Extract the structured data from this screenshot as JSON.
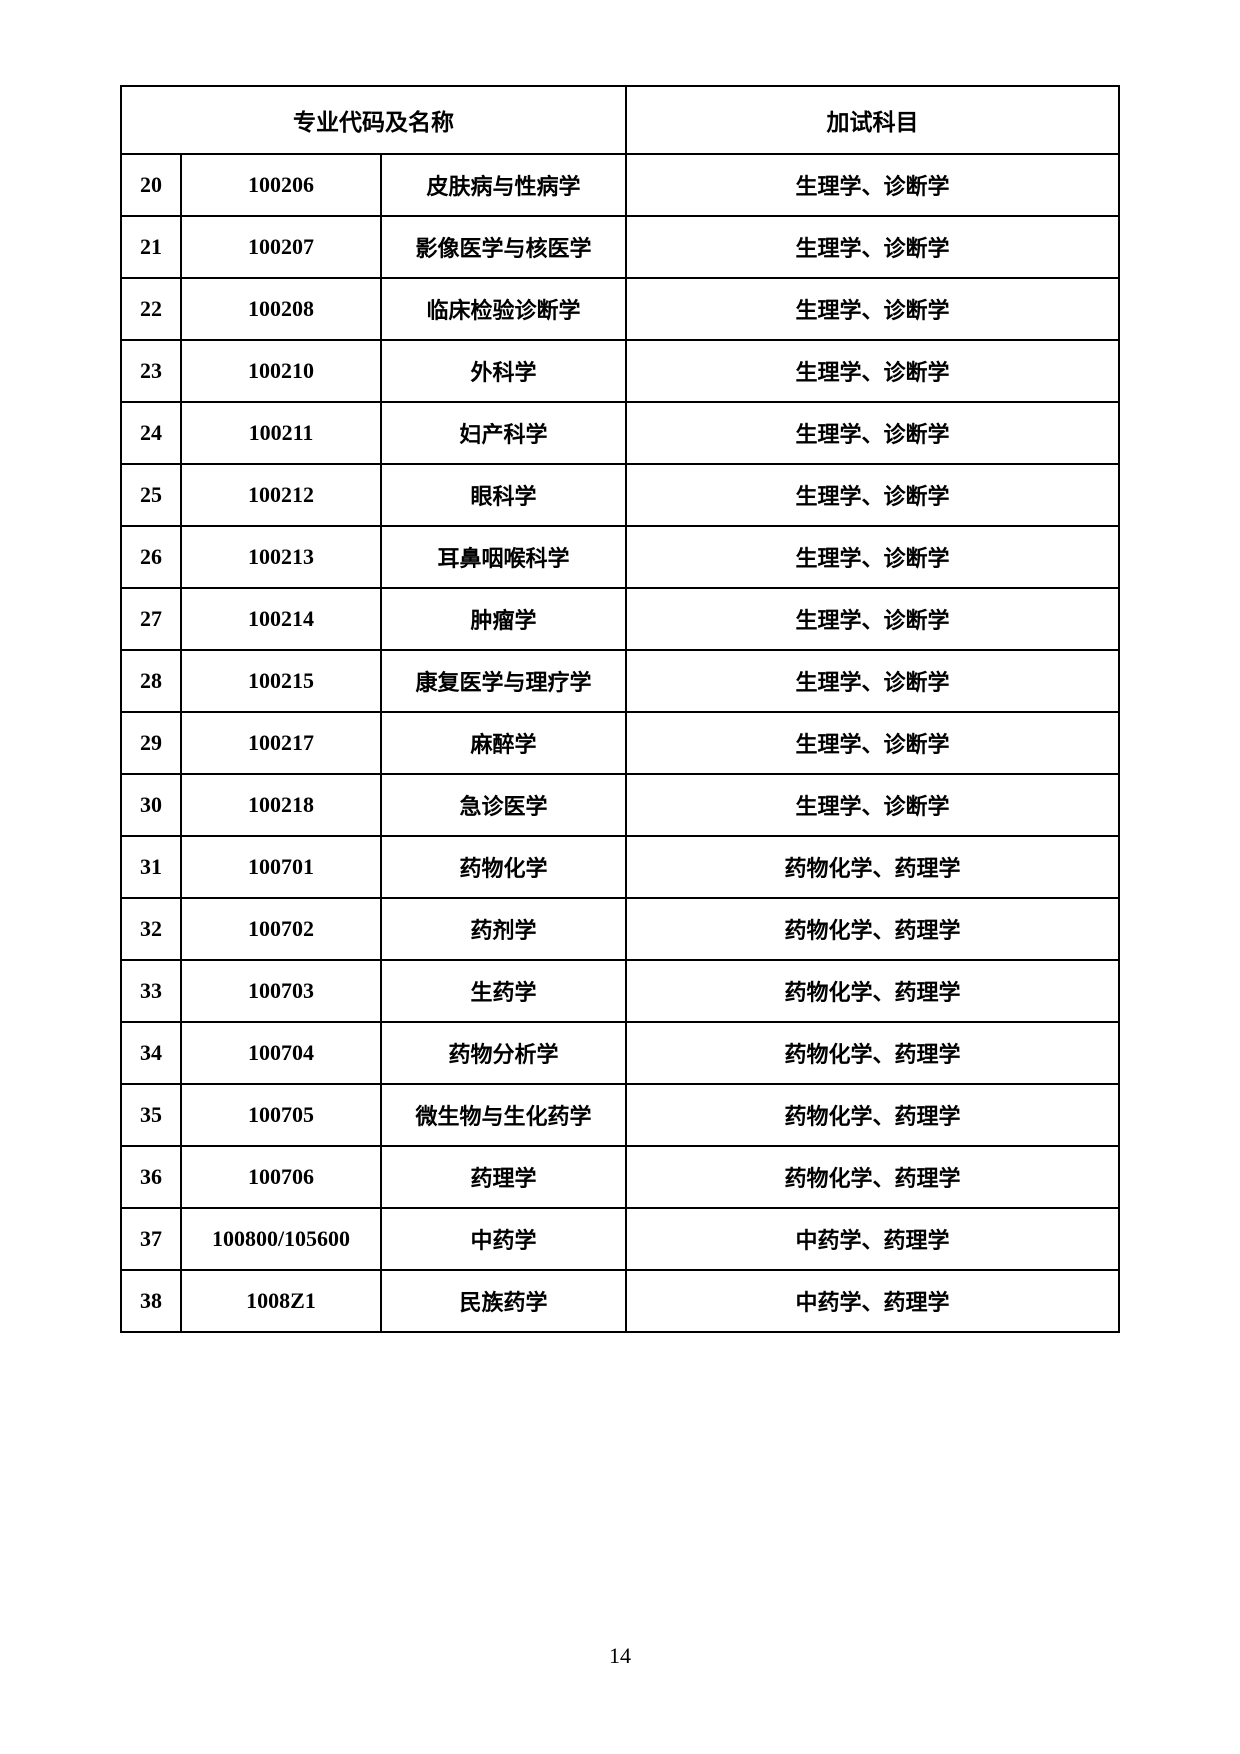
{
  "table": {
    "header": {
      "col_group_1": "专业代码及名称",
      "col_group_2": "加试科目"
    },
    "rows": [
      {
        "idx": "20",
        "code": "100206",
        "name": "皮肤病与性病学",
        "subject": "生理学、诊断学"
      },
      {
        "idx": "21",
        "code": "100207",
        "name": "影像医学与核医学",
        "subject": "生理学、诊断学"
      },
      {
        "idx": "22",
        "code": "100208",
        "name": "临床检验诊断学",
        "subject": "生理学、诊断学"
      },
      {
        "idx": "23",
        "code": "100210",
        "name": "外科学",
        "subject": "生理学、诊断学"
      },
      {
        "idx": "24",
        "code": "100211",
        "name": "妇产科学",
        "subject": "生理学、诊断学"
      },
      {
        "idx": "25",
        "code": "100212",
        "name": "眼科学",
        "subject": "生理学、诊断学"
      },
      {
        "idx": "26",
        "code": "100213",
        "name": "耳鼻咽喉科学",
        "subject": "生理学、诊断学"
      },
      {
        "idx": "27",
        "code": "100214",
        "name": "肿瘤学",
        "subject": "生理学、诊断学"
      },
      {
        "idx": "28",
        "code": "100215",
        "name": "康复医学与理疗学",
        "subject": "生理学、诊断学"
      },
      {
        "idx": "29",
        "code": "100217",
        "name": "麻醉学",
        "subject": "生理学、诊断学"
      },
      {
        "idx": "30",
        "code": "100218",
        "name": "急诊医学",
        "subject": "生理学、诊断学"
      },
      {
        "idx": "31",
        "code": "100701",
        "name": "药物化学",
        "subject": "药物化学、药理学"
      },
      {
        "idx": "32",
        "code": "100702",
        "name": "药剂学",
        "subject": "药物化学、药理学"
      },
      {
        "idx": "33",
        "code": "100703",
        "name": "生药学",
        "subject": "药物化学、药理学"
      },
      {
        "idx": "34",
        "code": "100704",
        "name": "药物分析学",
        "subject": "药物化学、药理学"
      },
      {
        "idx": "35",
        "code": "100705",
        "name": "微生物与生化药学",
        "subject": "药物化学、药理学"
      },
      {
        "idx": "36",
        "code": "100706",
        "name": "药理学",
        "subject": "药物化学、药理学"
      },
      {
        "idx": "37",
        "code": "100800/105600",
        "name": "中药学",
        "subject": "中药学、药理学"
      },
      {
        "idx": "38",
        "code": "1008Z1",
        "name": "民族药学",
        "subject": "中药学、药理学"
      }
    ]
  },
  "page_number": "14"
}
